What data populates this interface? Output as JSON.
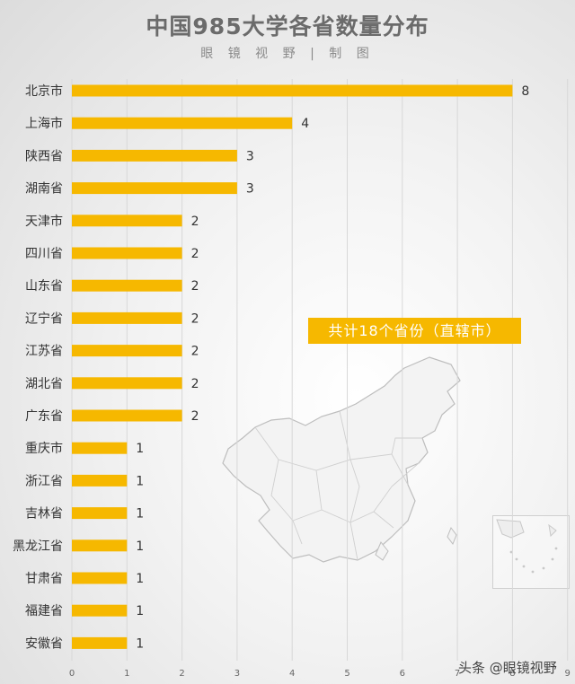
{
  "header": {
    "title": "中国985大学各省数量分布",
    "subtitle": "眼 镜 视 野 | 制 图"
  },
  "annotation": "共计18个省份（直辖市）",
  "watermark": "头条 @眼镜视野",
  "colors": {
    "bar": "#f6b800",
    "grid": "#d8d8d8",
    "text": "#333333"
  },
  "chart_data": {
    "type": "bar",
    "orientation": "horizontal",
    "categories": [
      "北京市",
      "上海市",
      "陕西省",
      "湖南省",
      "天津市",
      "四川省",
      "山东省",
      "辽宁省",
      "江苏省",
      "湖北省",
      "广东省",
      "重庆市",
      "浙江省",
      "吉林省",
      "黑龙江省",
      "甘肃省",
      "福建省",
      "安徽省"
    ],
    "values": [
      8,
      4,
      3,
      3,
      2,
      2,
      2,
      2,
      2,
      2,
      2,
      1,
      1,
      1,
      1,
      1,
      1,
      1
    ],
    "title": "中国985大学各省数量分布",
    "xlim": [
      0,
      9
    ],
    "xticks": [
      0,
      1,
      2,
      3,
      4,
      5,
      6,
      7,
      8,
      9
    ],
    "grid": true,
    "legend": "none"
  }
}
